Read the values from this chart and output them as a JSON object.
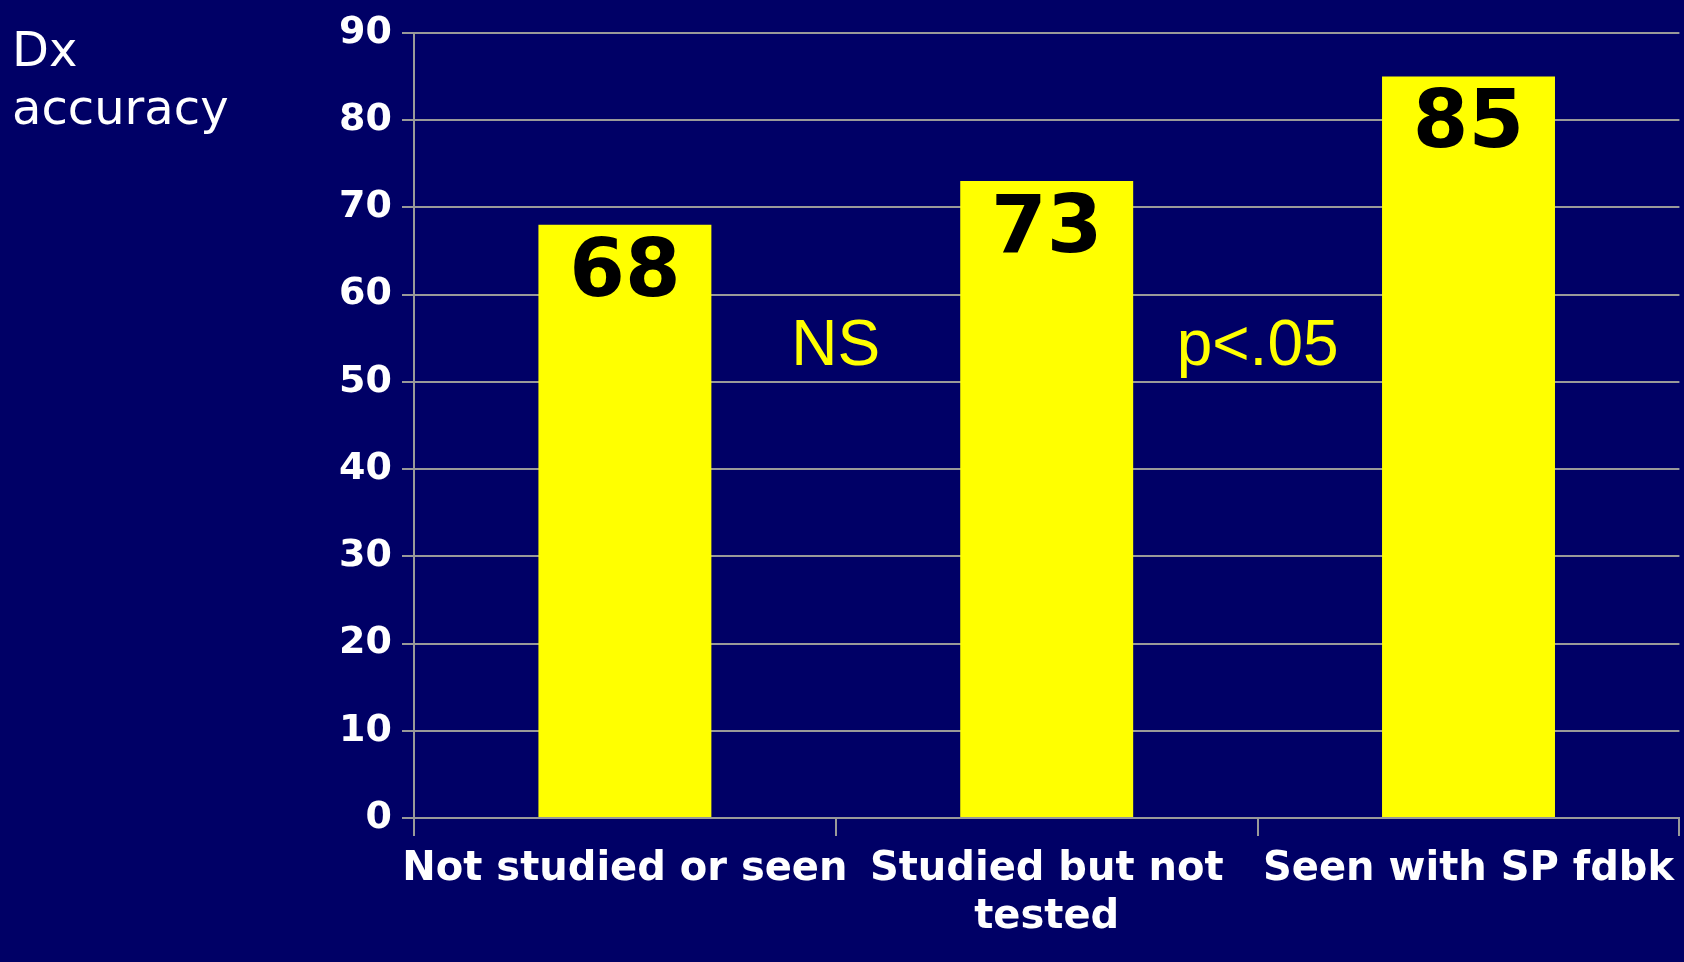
{
  "chart_data": {
    "type": "bar",
    "ylabel": "Dx accuracy",
    "categories": [
      "Not studied or seen",
      "Studied but not tested",
      "Seen with SP fdbk"
    ],
    "values": [
      68,
      73,
      85
    ],
    "color": "#ffff00",
    "ylim": [
      0,
      90
    ],
    "yticks": [
      0,
      10,
      20,
      30,
      40,
      50,
      60,
      70,
      80,
      90
    ],
    "grid": "y",
    "legend": false,
    "data_labels": true,
    "annotations": [
      "NS",
      "p<.05"
    ]
  }
}
